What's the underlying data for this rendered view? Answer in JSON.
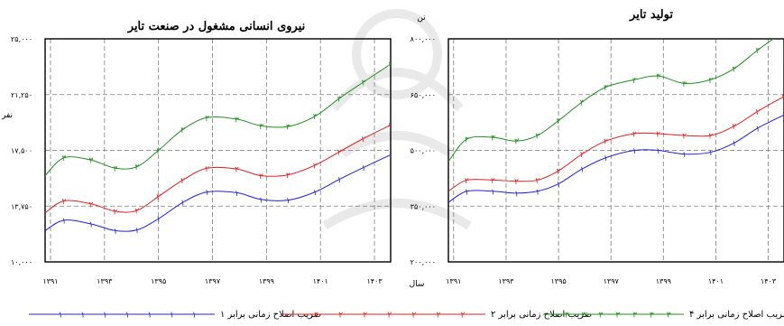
{
  "chart_data": [
    {
      "type": "line",
      "title": "نیروی انسانی مشغول در صنعت تایر",
      "ylabel": "نفر",
      "xlabel": "",
      "x": [
        1390.8,
        1391.5,
        1392.5,
        1393.4,
        1394.2,
        1395.0,
        1395.9,
        1396.8,
        1397.9,
        1398.8,
        1399.8,
        1400.8,
        1401.7,
        1402.6,
        1403.6
      ],
      "xlim": [
        1390.8,
        1403.6
      ],
      "ylim": [
        10000,
        25000
      ],
      "xticks": [
        1391,
        1393,
        1395,
        1397,
        1399,
        1401,
        1403
      ],
      "xtick_labels": [
        "۱۳۹۱",
        "۱۳۹۳",
        "۱۳۹۵",
        "۱۳۹۷",
        "۱۳۹۹",
        "۱۴۰۱",
        "۱۴۰۳"
      ],
      "yticks": [
        10000,
        13750,
        17500,
        21250,
        25000
      ],
      "ytick_labels": [
        "۱۰,۰۰۰",
        "۱۳,۷۵۰",
        "۱۷,۵۰۰",
        "۲۱,۲۵۰",
        "۲۵,۰۰۰"
      ],
      "series": [
        {
          "name": "ضریب اصلاح زمانی برابر ۱",
          "color": "#2020e0",
          "marker": "۱",
          "values": [
            12100,
            12800,
            12550,
            12100,
            12150,
            12900,
            14000,
            14700,
            14650,
            14200,
            14150,
            14700,
            15550,
            16350,
            17200
          ]
        },
        {
          "name": "ضریب اصلاح زمانی برابر ۲",
          "color": "#e02020",
          "marker": "۲",
          "values": [
            13300,
            14100,
            13900,
            13400,
            13450,
            14400,
            15500,
            16300,
            16250,
            15800,
            15850,
            16500,
            17400,
            18300,
            19200
          ]
        },
        {
          "name": "ضریب اصلاح زمانی برابر ۴",
          "color": "#209020",
          "marker": "۳",
          "values": [
            15800,
            17000,
            16850,
            16300,
            16400,
            17500,
            18900,
            19700,
            19600,
            19150,
            19100,
            19800,
            21000,
            22100,
            23300
          ]
        }
      ]
    },
    {
      "type": "line",
      "title": "تولید تایر",
      "ylabel": "تن",
      "xlabel": "سال",
      "x": [
        1390.8,
        1391.5,
        1392.5,
        1393.4,
        1394.2,
        1395.0,
        1395.9,
        1396.8,
        1397.9,
        1398.8,
        1399.8,
        1400.8,
        1401.7,
        1402.6,
        1403.6
      ],
      "xlim": [
        1390.8,
        1403.6
      ],
      "ylim": [
        200000,
        800000
      ],
      "xticks": [
        1391,
        1393,
        1395,
        1397,
        1399,
        1401,
        1403
      ],
      "xtick_labels": [
        "۱۳۹۱",
        "۱۳۹۳",
        "۱۳۹۵",
        "۱۳۹۷",
        "۱۳۹۹",
        "۱۴۰۱",
        "۱۴۰۳"
      ],
      "yticks": [
        200000,
        350000,
        500000,
        650000,
        800000
      ],
      "ytick_labels": [
        "۲۰۰,۰۰۰",
        "۳۵۰,۰۰۰",
        "۵۰۰,۰۰۰",
        "۶۵۰,۰۰۰",
        "۸۰۰,۰۰۰"
      ],
      "series": [
        {
          "name": "ضریب اصلاح زمانی برابر ۱",
          "color": "#2020e0",
          "marker": "۱",
          "values": [
            360000,
            390000,
            390000,
            385000,
            390000,
            410000,
            450000,
            480000,
            500000,
            500000,
            490000,
            495000,
            520000,
            560000,
            595000
          ]
        },
        {
          "name": "ضریب اصلاح زمانی برابر ۲",
          "color": "#e02020",
          "marker": "۲",
          "values": [
            390000,
            420000,
            420000,
            417000,
            420000,
            445000,
            490000,
            525000,
            545000,
            545000,
            540000,
            540000,
            565000,
            605000,
            645000
          ]
        },
        {
          "name": "ضریب اصلاح زمانی برابر ۴",
          "color": "#209020",
          "marker": "۳",
          "values": [
            470000,
            530000,
            535000,
            525000,
            540000,
            580000,
            630000,
            670000,
            690000,
            700000,
            680000,
            690000,
            720000,
            770000,
            820000
          ]
        }
      ]
    }
  ],
  "legend": [
    {
      "label": "ضریب اصلاح زمانی برابر ۱",
      "color": "#2020e0",
      "marker": "۱"
    },
    {
      "label": "ضریب اصلاح زمانی برابر ۲",
      "color": "#e02020",
      "marker": "۲"
    },
    {
      "label": "ضریب اصلاح زمانی برابر ۴",
      "color": "#209020",
      "marker": "۳"
    }
  ]
}
